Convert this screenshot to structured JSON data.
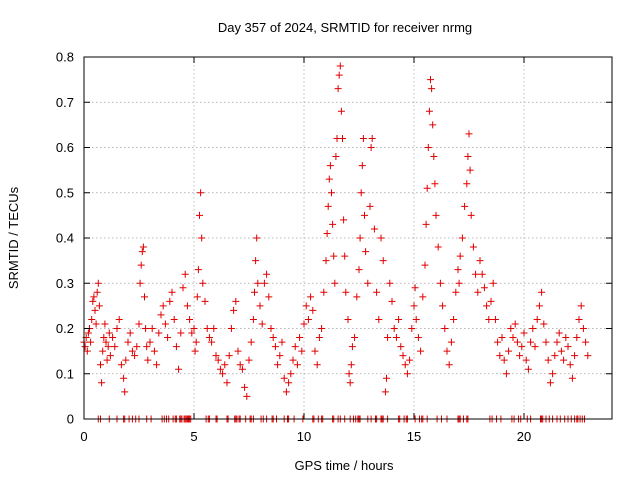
{
  "chart_data": {
    "type": "scatter",
    "title": "Day 357 of 2024, SRMTID for receiver nrmg",
    "xlabel": "GPS time / hours",
    "ylabel": "SRMTID / TECUs",
    "xlim": [
      0,
      24
    ],
    "ylim": [
      0,
      0.8
    ],
    "xticks": [
      "0",
      "5",
      "10",
      "15",
      "20"
    ],
    "yticks": [
      "0",
      "0.1",
      "0.2",
      "0.3",
      "0.4",
      "0.5",
      "0.6",
      "0.7",
      "0.8"
    ],
    "grid": true,
    "marker": "plus",
    "color": "#e00000",
    "series": [
      {
        "name": "SRMTID",
        "points": [
          [
            0.0,
            0.17
          ],
          [
            0.05,
            0.16
          ],
          [
            0.1,
            0.18
          ],
          [
            0.15,
            0.15
          ],
          [
            0.2,
            0.19
          ],
          [
            0.25,
            0.2
          ],
          [
            0.3,
            0.17
          ],
          [
            0.35,
            0.22
          ],
          [
            0.4,
            0.26
          ],
          [
            0.45,
            0.27
          ],
          [
            0.5,
            0.24
          ],
          [
            0.55,
            0.21
          ],
          [
            0.6,
            0.28
          ],
          [
            0.65,
            0.3
          ],
          [
            0.7,
            0.25
          ],
          [
            0.75,
            0.12
          ],
          [
            0.8,
            0.08
          ],
          [
            0.85,
            0.15
          ],
          [
            0.9,
            0.18
          ],
          [
            0.95,
            0.21
          ],
          [
            1.0,
            0.17
          ],
          [
            1.05,
            0.13
          ],
          [
            1.1,
            0.16
          ],
          [
            1.15,
            0.19
          ],
          [
            1.2,
            0.14
          ],
          [
            1.3,
            0.18
          ],
          [
            1.4,
            0.16
          ],
          [
            1.5,
            0.2
          ],
          [
            1.6,
            0.22
          ],
          [
            1.7,
            0.12
          ],
          [
            1.8,
            0.09
          ],
          [
            1.85,
            0.06
          ],
          [
            1.9,
            0.13
          ],
          [
            2.0,
            0.17
          ],
          [
            2.1,
            0.19
          ],
          [
            2.2,
            0.15
          ],
          [
            2.3,
            0.14
          ],
          [
            2.4,
            0.16
          ],
          [
            2.5,
            0.21
          ],
          [
            2.55,
            0.3
          ],
          [
            2.6,
            0.34
          ],
          [
            2.65,
            0.37
          ],
          [
            2.7,
            0.38
          ],
          [
            2.75,
            0.27
          ],
          [
            2.8,
            0.2
          ],
          [
            2.85,
            0.16
          ],
          [
            2.9,
            0.13
          ],
          [
            3.0,
            0.17
          ],
          [
            3.1,
            0.2
          ],
          [
            3.2,
            0.15
          ],
          [
            3.3,
            0.12
          ],
          [
            3.4,
            0.19
          ],
          [
            3.5,
            0.23
          ],
          [
            3.6,
            0.25
          ],
          [
            3.7,
            0.21
          ],
          [
            3.8,
            0.18
          ],
          [
            3.9,
            0.26
          ],
          [
            4.0,
            0.28
          ],
          [
            4.1,
            0.22
          ],
          [
            4.2,
            0.16
          ],
          [
            4.3,
            0.11
          ],
          [
            4.4,
            0.19
          ],
          [
            4.5,
            0.29
          ],
          [
            4.6,
            0.32
          ],
          [
            4.7,
            0.25
          ],
          [
            4.8,
            0.22
          ],
          [
            4.9,
            0.19
          ],
          [
            5.0,
            0.2
          ],
          [
            5.05,
            0.15
          ],
          [
            5.1,
            0.17
          ],
          [
            5.15,
            0.27
          ],
          [
            5.2,
            0.33
          ],
          [
            5.25,
            0.45
          ],
          [
            5.3,
            0.5
          ],
          [
            5.35,
            0.4
          ],
          [
            5.4,
            0.3
          ],
          [
            5.5,
            0.26
          ],
          [
            5.6,
            0.2
          ],
          [
            5.7,
            0.18
          ],
          [
            5.8,
            0.17
          ],
          [
            5.9,
            0.2
          ],
          [
            6.0,
            0.14
          ],
          [
            6.1,
            0.13
          ],
          [
            6.2,
            0.11
          ],
          [
            6.3,
            0.1
          ],
          [
            6.4,
            0.12
          ],
          [
            6.5,
            0.08
          ],
          [
            6.6,
            0.14
          ],
          [
            6.7,
            0.2
          ],
          [
            6.8,
            0.24
          ],
          [
            6.9,
            0.26
          ],
          [
            7.0,
            0.15
          ],
          [
            7.1,
            0.12
          ],
          [
            7.2,
            0.11
          ],
          [
            7.3,
            0.07
          ],
          [
            7.4,
            0.05
          ],
          [
            7.5,
            0.13
          ],
          [
            7.6,
            0.17
          ],
          [
            7.7,
            0.22
          ],
          [
            7.75,
            0.28
          ],
          [
            7.8,
            0.35
          ],
          [
            7.85,
            0.4
          ],
          [
            7.9,
            0.3
          ],
          [
            8.0,
            0.25
          ],
          [
            8.1,
            0.21
          ],
          [
            8.2,
            0.3
          ],
          [
            8.3,
            0.32
          ],
          [
            8.4,
            0.27
          ],
          [
            8.5,
            0.2
          ],
          [
            8.6,
            0.18
          ],
          [
            8.7,
            0.16
          ],
          [
            8.8,
            0.12
          ],
          [
            8.9,
            0.14
          ],
          [
            9.0,
            0.17
          ],
          [
            9.1,
            0.09
          ],
          [
            9.2,
            0.06
          ],
          [
            9.3,
            0.08
          ],
          [
            9.4,
            0.1
          ],
          [
            9.5,
            0.13
          ],
          [
            9.6,
            0.16
          ],
          [
            9.7,
            0.12
          ],
          [
            9.8,
            0.18
          ],
          [
            9.9,
            0.15
          ],
          [
            10.0,
            0.21
          ],
          [
            10.1,
            0.25
          ],
          [
            10.2,
            0.22
          ],
          [
            10.3,
            0.27
          ],
          [
            10.4,
            0.24
          ],
          [
            10.5,
            0.15
          ],
          [
            10.6,
            0.12
          ],
          [
            10.7,
            0.18
          ],
          [
            10.8,
            0.2
          ],
          [
            10.9,
            0.28
          ],
          [
            11.0,
            0.35
          ],
          [
            11.05,
            0.41
          ],
          [
            11.1,
            0.47
          ],
          [
            11.15,
            0.53
          ],
          [
            11.2,
            0.56
          ],
          [
            11.25,
            0.5
          ],
          [
            11.3,
            0.43
          ],
          [
            11.35,
            0.36
          ],
          [
            11.4,
            0.3
          ],
          [
            11.45,
            0.58
          ],
          [
            11.5,
            0.62
          ],
          [
            11.55,
            0.73
          ],
          [
            11.6,
            0.76
          ],
          [
            11.65,
            0.78
          ],
          [
            11.7,
            0.68
          ],
          [
            11.75,
            0.62
          ],
          [
            11.8,
            0.44
          ],
          [
            11.85,
            0.36
          ],
          [
            11.9,
            0.28
          ],
          [
            12.0,
            0.22
          ],
          [
            12.05,
            0.1
          ],
          [
            12.1,
            0.08
          ],
          [
            12.15,
            0.12
          ],
          [
            12.2,
            0.16
          ],
          [
            12.3,
            0.18
          ],
          [
            12.4,
            0.27
          ],
          [
            12.5,
            0.33
          ],
          [
            12.55,
            0.4
          ],
          [
            12.6,
            0.5
          ],
          [
            12.65,
            0.56
          ],
          [
            12.7,
            0.62
          ],
          [
            12.75,
            0.45
          ],
          [
            12.8,
            0.37
          ],
          [
            12.9,
            0.3
          ],
          [
            13.0,
            0.47
          ],
          [
            13.05,
            0.6
          ],
          [
            13.1,
            0.62
          ],
          [
            13.2,
            0.42
          ],
          [
            13.3,
            0.28
          ],
          [
            13.4,
            0.22
          ],
          [
            13.5,
            0.4
          ],
          [
            13.6,
            0.35
          ],
          [
            13.7,
            0.06
          ],
          [
            13.75,
            0.09
          ],
          [
            13.8,
            0.18
          ],
          [
            13.9,
            0.3
          ],
          [
            14.0,
            0.26
          ],
          [
            14.1,
            0.2
          ],
          [
            14.2,
            0.18
          ],
          [
            14.3,
            0.22
          ],
          [
            14.4,
            0.16
          ],
          [
            14.5,
            0.14
          ],
          [
            14.6,
            0.12
          ],
          [
            14.7,
            0.1
          ],
          [
            14.8,
            0.13
          ],
          [
            14.9,
            0.2
          ],
          [
            15.0,
            0.25
          ],
          [
            15.05,
            0.29
          ],
          [
            15.1,
            0.22
          ],
          [
            15.2,
            0.18
          ],
          [
            15.3,
            0.15
          ],
          [
            15.4,
            0.27
          ],
          [
            15.5,
            0.34
          ],
          [
            15.55,
            0.43
          ],
          [
            15.6,
            0.51
          ],
          [
            15.65,
            0.6
          ],
          [
            15.7,
            0.68
          ],
          [
            15.75,
            0.75
          ],
          [
            15.8,
            0.73
          ],
          [
            15.85,
            0.65
          ],
          [
            15.9,
            0.58
          ],
          [
            15.95,
            0.52
          ],
          [
            16.0,
            0.45
          ],
          [
            16.1,
            0.38
          ],
          [
            16.2,
            0.3
          ],
          [
            16.3,
            0.25
          ],
          [
            16.4,
            0.2
          ],
          [
            16.5,
            0.15
          ],
          [
            16.6,
            0.12
          ],
          [
            16.7,
            0.17
          ],
          [
            16.8,
            0.22
          ],
          [
            16.9,
            0.28
          ],
          [
            17.0,
            0.33
          ],
          [
            17.05,
            0.3
          ],
          [
            17.1,
            0.36
          ],
          [
            17.2,
            0.4
          ],
          [
            17.3,
            0.47
          ],
          [
            17.4,
            0.52
          ],
          [
            17.45,
            0.58
          ],
          [
            17.5,
            0.63
          ],
          [
            17.55,
            0.55
          ],
          [
            17.6,
            0.45
          ],
          [
            17.7,
            0.38
          ],
          [
            17.8,
            0.32
          ],
          [
            17.9,
            0.28
          ],
          [
            18.0,
            0.35
          ],
          [
            18.1,
            0.32
          ],
          [
            18.2,
            0.29
          ],
          [
            18.3,
            0.25
          ],
          [
            18.4,
            0.22
          ],
          [
            18.5,
            0.26
          ],
          [
            18.6,
            0.3
          ],
          [
            18.7,
            0.22
          ],
          [
            18.8,
            0.17
          ],
          [
            18.9,
            0.14
          ],
          [
            19.0,
            0.18
          ],
          [
            19.1,
            0.13
          ],
          [
            19.2,
            0.1
          ],
          [
            19.3,
            0.15
          ],
          [
            19.4,
            0.2
          ],
          [
            19.5,
            0.18
          ],
          [
            19.6,
            0.21
          ],
          [
            19.7,
            0.17
          ],
          [
            19.8,
            0.14
          ],
          [
            19.9,
            0.16
          ],
          [
            20.0,
            0.19
          ],
          [
            20.1,
            0.13
          ],
          [
            20.2,
            0.11
          ],
          [
            20.3,
            0.17
          ],
          [
            20.4,
            0.2
          ],
          [
            20.5,
            0.16
          ],
          [
            20.6,
            0.22
          ],
          [
            20.7,
            0.25
          ],
          [
            20.8,
            0.28
          ],
          [
            20.9,
            0.21
          ],
          [
            21.0,
            0.17
          ],
          [
            21.1,
            0.13
          ],
          [
            21.2,
            0.08
          ],
          [
            21.3,
            0.1
          ],
          [
            21.4,
            0.14
          ],
          [
            21.5,
            0.17
          ],
          [
            21.6,
            0.19
          ],
          [
            21.7,
            0.15
          ],
          [
            21.8,
            0.13
          ],
          [
            21.9,
            0.18
          ],
          [
            22.0,
            0.16
          ],
          [
            22.1,
            0.12
          ],
          [
            22.2,
            0.09
          ],
          [
            22.3,
            0.14
          ],
          [
            22.4,
            0.18
          ],
          [
            22.5,
            0.22
          ],
          [
            22.6,
            0.25
          ],
          [
            22.7,
            0.2
          ],
          [
            22.8,
            0.17
          ],
          [
            22.9,
            0.14
          ]
        ]
      }
    ],
    "zero_markers_x": [
      0.65,
      0.75,
      1.15,
      1.5,
      1.8,
      1.85,
      2.05,
      2.2,
      2.35,
      2.5,
      2.85,
      3.05,
      3.55,
      3.65,
      3.75,
      3.85,
      4.05,
      4.15,
      4.2,
      4.35,
      4.4,
      4.45,
      4.55,
      4.6,
      4.65,
      4.7,
      4.75,
      4.8,
      4.85,
      5.55,
      5.65,
      5.7,
      6.0,
      6.05,
      6.5,
      6.55,
      6.85,
      6.9,
      6.95,
      7.05,
      7.1,
      7.35,
      7.55,
      7.6,
      7.7,
      8.05,
      8.15,
      8.3,
      8.55,
      8.6,
      8.75,
      9.1,
      9.25,
      9.3,
      9.55,
      9.95,
      10.4,
      10.45,
      10.65,
      10.8,
      10.85,
      11.3,
      11.35,
      11.55,
      11.65,
      11.85,
      12.1,
      12.25,
      12.35,
      12.45,
      12.5,
      12.55,
      12.9,
      13.05,
      13.25,
      13.3,
      13.5,
      13.55,
      13.6,
      13.8,
      14.3,
      14.35,
      14.55,
      14.65,
      14.7,
      15.05,
      15.25,
      15.35,
      15.4,
      15.6,
      16.05,
      16.25,
      16.5,
      17.0,
      17.05,
      17.1,
      17.25,
      17.4,
      17.45,
      18.45,
      18.55,
      18.75,
      18.95,
      19.45,
      19.55,
      19.75,
      19.85,
      20.15,
      20.3,
      20.75,
      20.8,
      20.85,
      21.0,
      21.15,
      21.3,
      21.5,
      21.65,
      21.85,
      22.0,
      22.15,
      22.3,
      22.4,
      22.45,
      22.55,
      22.65,
      22.75
    ]
  }
}
